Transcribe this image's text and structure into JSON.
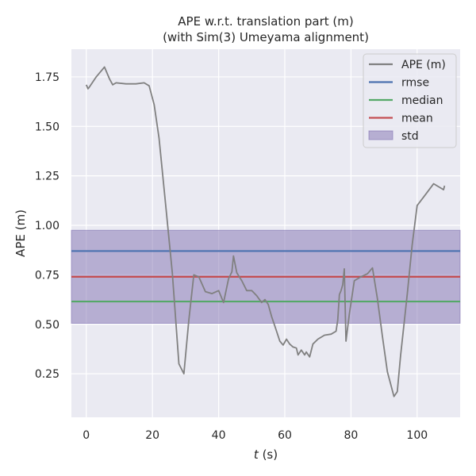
{
  "chart_data": {
    "type": "line",
    "title": "APE w.r.t. translation part (m)",
    "subtitle": "(with Sim(3) Umeyama alignment)",
    "xlabel_var": "t",
    "xlabel_unit": " (s)",
    "ylabel": "APE (m)",
    "xlim": [
      -4.5,
      113
    ],
    "ylim": [
      0.03,
      1.89
    ],
    "xticks": [
      0,
      20,
      40,
      60,
      80,
      100
    ],
    "yticks": [
      0.25,
      0.5,
      0.75,
      1.0,
      1.25,
      1.5,
      1.75
    ],
    "ytick_labels": [
      "0.25",
      "0.50",
      "0.75",
      "1.00",
      "1.25",
      "1.50",
      "1.75"
    ],
    "grid": true,
    "legend_position": "top-right",
    "colors": {
      "background": "#eaeaf2",
      "grid": "#ffffff",
      "ape": "#808080",
      "rmse": "#4c72b0",
      "median": "#55a868",
      "mean": "#c44e52",
      "std": "#8172b2"
    },
    "stats": {
      "rmse": 0.87,
      "median": 0.615,
      "mean": 0.74,
      "std_low": 0.505,
      "std_high": 0.975
    },
    "legend": [
      {
        "label": "APE (m)",
        "kind": "line",
        "color": "#808080"
      },
      {
        "label": "rmse",
        "kind": "line",
        "color": "#4c72b0"
      },
      {
        "label": "median",
        "kind": "line",
        "color": "#55a868"
      },
      {
        "label": "mean",
        "kind": "line",
        "color": "#c44e52"
      },
      {
        "label": "std",
        "kind": "patch",
        "color": "#8172b2"
      }
    ],
    "series": [
      {
        "name": "APE (m)",
        "x": [
          0,
          0.5,
          1,
          3,
          5.5,
          7,
          8,
          9,
          12,
          15,
          17.5,
          19,
          20.5,
          22,
          24,
          26,
          28,
          29.5,
          31,
          32.5,
          34,
          36,
          38,
          40,
          41.5,
          43,
          44,
          44.5,
          45.5,
          47,
          48.5,
          50,
          51.5,
          53,
          54,
          55,
          56,
          57,
          57.5,
          58.5,
          59.5,
          60.5,
          61.5,
          62.5,
          63.5,
          64,
          65,
          66,
          66.5,
          67.5,
          68.5,
          70,
          72,
          74,
          75.5,
          76,
          76.5,
          77,
          77.5,
          78,
          78.5,
          79.5,
          81,
          83,
          85,
          86.5,
          88,
          89.5,
          91,
          93,
          94,
          95,
          97,
          98.5,
          100,
          102.5,
          105,
          108,
          108.3
        ],
        "y": [
          1.71,
          1.69,
          1.7,
          1.75,
          1.8,
          1.74,
          1.71,
          1.72,
          1.715,
          1.715,
          1.72,
          1.705,
          1.61,
          1.44,
          1.1,
          0.76,
          0.3,
          0.25,
          0.52,
          0.75,
          0.74,
          0.665,
          0.655,
          0.67,
          0.61,
          0.73,
          0.765,
          0.845,
          0.76,
          0.72,
          0.67,
          0.67,
          0.645,
          0.61,
          0.625,
          0.6,
          0.54,
          0.49,
          0.465,
          0.415,
          0.395,
          0.425,
          0.4,
          0.385,
          0.38,
          0.345,
          0.37,
          0.345,
          0.36,
          0.335,
          0.4,
          0.425,
          0.445,
          0.45,
          0.465,
          0.52,
          0.65,
          0.67,
          0.7,
          0.78,
          0.415,
          0.55,
          0.72,
          0.74,
          0.755,
          0.785,
          0.63,
          0.44,
          0.26,
          0.135,
          0.16,
          0.34,
          0.65,
          0.9,
          1.1,
          1.155,
          1.21,
          1.18,
          1.2
        ]
      }
    ]
  }
}
